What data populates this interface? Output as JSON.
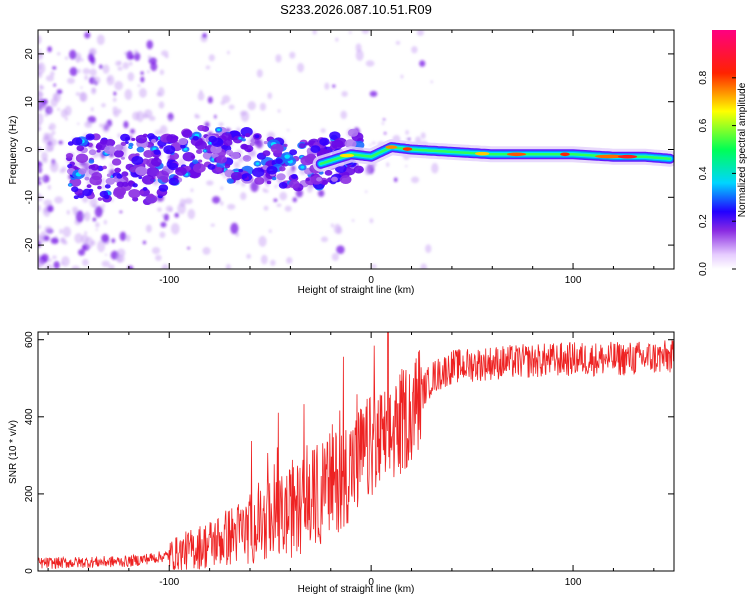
{
  "title": "S233.2026.087.10.51.R09",
  "chart_data": [
    {
      "type": "heatmap",
      "name": "spectrogram",
      "xlabel": "Height of straight line (km)",
      "ylabel": "Frequency (Hz)",
      "xlim": [
        -165,
        150
      ],
      "ylim": [
        -25,
        25
      ],
      "xticks": [
        -100,
        0,
        100
      ],
      "yticks": [
        -20,
        -10,
        0,
        10,
        20
      ],
      "ridge": [
        {
          "x": -110,
          "y": -4
        },
        {
          "x": -90,
          "y": -1
        },
        {
          "x": -80,
          "y": 1
        },
        {
          "x": -70,
          "y": -2
        },
        {
          "x": -60,
          "y": -1
        },
        {
          "x": -40,
          "y": -4
        },
        {
          "x": -25,
          "y": -3
        },
        {
          "x": -10,
          "y": -1
        },
        {
          "x": 0,
          "y": -1.5
        },
        {
          "x": 10,
          "y": 0.5
        },
        {
          "x": 20,
          "y": 0
        },
        {
          "x": 40,
          "y": -0.5
        },
        {
          "x": 60,
          "y": -1
        },
        {
          "x": 80,
          "y": -1
        },
        {
          "x": 100,
          "y": -1
        },
        {
          "x": 120,
          "y": -1.5
        },
        {
          "x": 135,
          "y": -1.5
        },
        {
          "x": 150,
          "y": -2
        }
      ],
      "colorbar": {
        "label": "Normalized spectral amplitude",
        "range": [
          0,
          1
        ],
        "ticks": [
          "0.0",
          "0.2",
          "0.4",
          "0.6",
          "0.8"
        ]
      }
    },
    {
      "type": "line",
      "name": "snr",
      "xlabel": "Height of straight line (km)",
      "ylabel": "SNR (10 * v/v)",
      "xlim": [
        -165,
        150
      ],
      "ylim": [
        0,
        620
      ],
      "xticks": [
        -100,
        0,
        100
      ],
      "yticks": [
        0,
        200,
        400,
        600
      ],
      "color": "#ee2222",
      "trend": [
        {
          "x": -165,
          "y": 20
        },
        {
          "x": -120,
          "y": 25
        },
        {
          "x": -100,
          "y": 40
        },
        {
          "x": -80,
          "y": 70
        },
        {
          "x": -60,
          "y": 110
        },
        {
          "x": -40,
          "y": 150
        },
        {
          "x": -20,
          "y": 220
        },
        {
          "x": -10,
          "y": 270
        },
        {
          "x": 0,
          "y": 320
        },
        {
          "x": 10,
          "y": 350
        },
        {
          "x": 20,
          "y": 420
        },
        {
          "x": 30,
          "y": 500
        },
        {
          "x": 40,
          "y": 530
        },
        {
          "x": 60,
          "y": 540
        },
        {
          "x": 80,
          "y": 545
        },
        {
          "x": 100,
          "y": 550
        },
        {
          "x": 120,
          "y": 550
        },
        {
          "x": 150,
          "y": 555
        }
      ]
    }
  ]
}
